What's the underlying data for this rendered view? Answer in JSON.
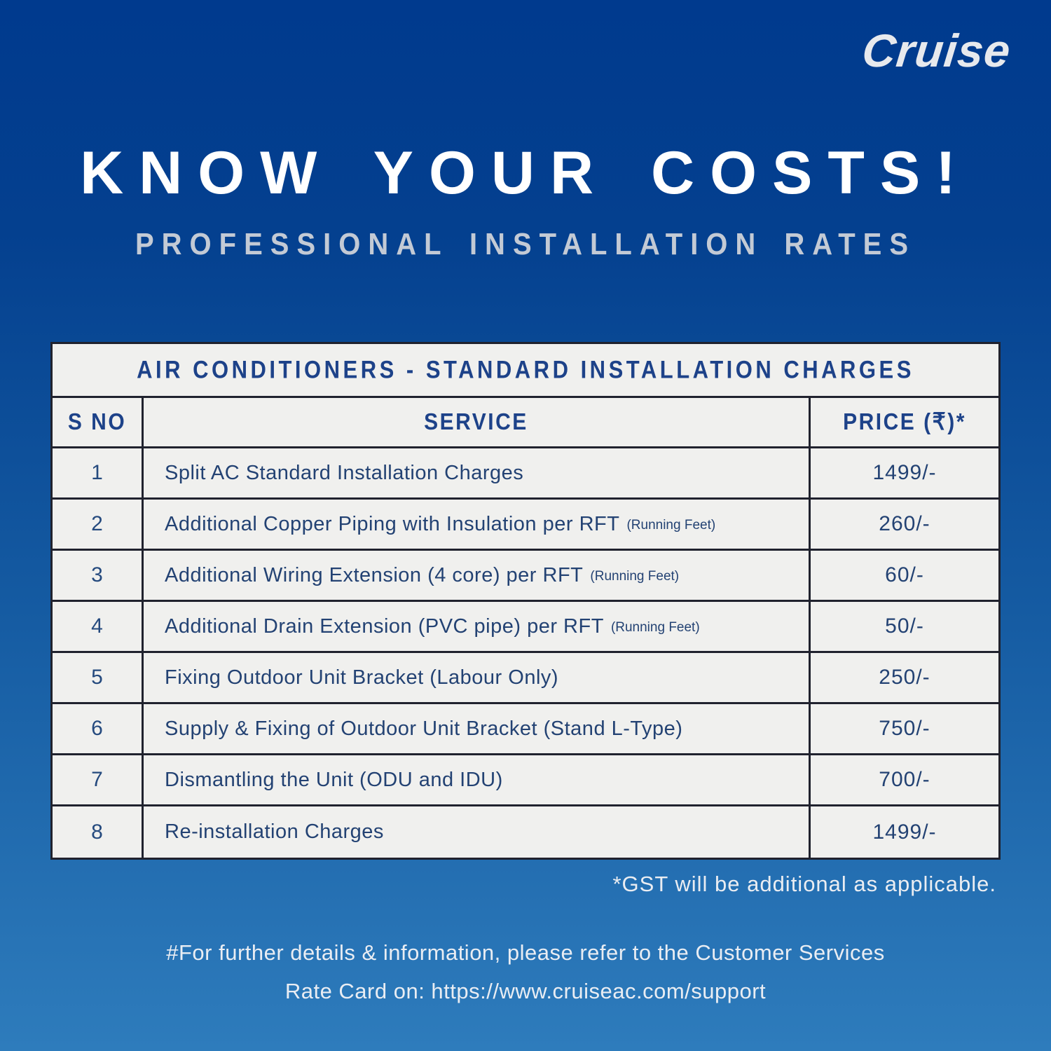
{
  "logo": "Cruise",
  "headline": "KNOW YOUR COSTS!",
  "subtitle": "PROFESSIONAL INSTALLATION RATES",
  "table": {
    "title": "AIR CONDITIONERS - STANDARD INSTALLATION CHARGES",
    "columns": [
      "S NO",
      "SERVICE",
      "PRICE (₹)*"
    ],
    "rows": [
      {
        "sno": "1",
        "service": "Split AC Standard Installation Charges",
        "note": "",
        "price": "1499/-"
      },
      {
        "sno": "2",
        "service": "Additional Copper Piping with Insulation per RFT",
        "note": "(Running Feet)",
        "price": "260/-"
      },
      {
        "sno": "3",
        "service": "Additional Wiring Extension (4 core) per RFT",
        "note": "(Running Feet)",
        "price": "60/-"
      },
      {
        "sno": "4",
        "service": "Additional Drain Extension (PVC pipe) per RFT",
        "note": "(Running Feet)",
        "price": "50/-"
      },
      {
        "sno": "5",
        "service": "Fixing Outdoor Unit Bracket (Labour Only)",
        "note": "",
        "price": "250/-"
      },
      {
        "sno": "6",
        "service": "Supply & Fixing of Outdoor Unit Bracket (Stand L-Type)",
        "note": "",
        "price": "750/-"
      },
      {
        "sno": "7",
        "service": "Dismantling the Unit (ODU and IDU)",
        "note": "",
        "price": "700/-"
      },
      {
        "sno": "8",
        "service": "Re-installation Charges",
        "note": "",
        "price": "1499/-"
      }
    ]
  },
  "notes": {
    "gst": "*GST will be additional as applicable.",
    "footer_line1": "#For further details & information, please refer to the Customer Services",
    "footer_line2": "Rate Card on: https://www.cruiseac.com/support"
  },
  "colors": {
    "background_top": "#003A8E",
    "background_bottom": "#2E7CBC",
    "table_background": "#F0F0EE",
    "table_border": "#20222E",
    "navy_text": "#1D4289",
    "headline_text": "#FFFFFF",
    "subtitle_text": "#C3CAD5"
  }
}
